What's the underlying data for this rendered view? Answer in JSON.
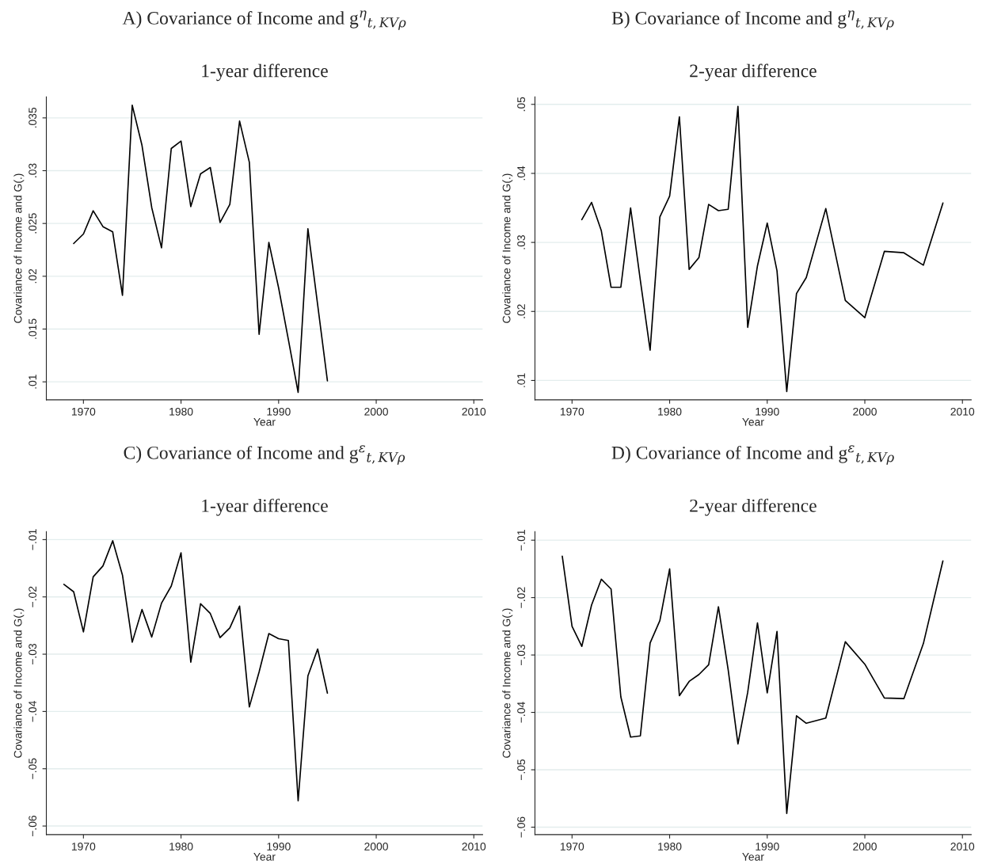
{
  "chart_data": [
    {
      "type": "line",
      "title": "A) Covariance of Income and g$^{η}$$_{t,KVρ}$",
      "subtitle": "1-year difference",
      "xlabel": "Year",
      "ylabel": "Covariance of Income and G(.)",
      "color": "#000000",
      "grid": "y",
      "x": [
        1969,
        1970,
        1971,
        1972,
        1973,
        1974,
        1975,
        1976,
        1977,
        1978,
        1979,
        1980,
        1981,
        1982,
        1983,
        1984,
        1985,
        1986,
        1987,
        1988,
        1989,
        1990,
        1991,
        1992,
        1993,
        1994,
        1995
      ],
      "values": [
        0.0231,
        0.024,
        0.0262,
        0.0247,
        0.0242,
        0.0182,
        0.0362,
        0.0324,
        0.0265,
        0.0227,
        0.0321,
        0.0328,
        0.0266,
        0.0297,
        0.0303,
        0.0251,
        0.0268,
        0.0347,
        0.0308,
        0.0145,
        0.0232,
        0.0189,
        0.014,
        0.009,
        0.0245,
        0.0173,
        0.0101
      ],
      "xlim": [
        1966.2,
        2010.9
      ],
      "xticks": [
        1970,
        1980,
        1990,
        2000,
        2010
      ],
      "ylim": [
        0.0083,
        0.037
      ],
      "yticks": [
        {
          "value": 0.01,
          "label": ".01"
        },
        {
          "value": 0.015,
          "label": ".015"
        },
        {
          "value": 0.02,
          "label": ".02"
        },
        {
          "value": 0.025,
          "label": ".025"
        },
        {
          "value": 0.03,
          "label": ".03"
        },
        {
          "value": 0.035,
          "label": ".035"
        }
      ]
    },
    {
      "type": "line",
      "title": "B) Covariance of Income and g$^{η}$$_{t,KVρ}$",
      "subtitle": "2-year difference",
      "xlabel": "Year",
      "ylabel": "Covariance of Income and G(.)",
      "color": "#000000",
      "grid": "y",
      "x": [
        1971,
        1972,
        1973,
        1974,
        1975,
        1976,
        1977,
        1978,
        1979,
        1980,
        1981,
        1982,
        1983,
        1984,
        1985,
        1986,
        1987,
        1988,
        1989,
        1990,
        1991,
        1992,
        1993,
        1994,
        1996,
        1998,
        2000,
        2002,
        2004,
        2006,
        2008
      ],
      "values": [
        0.0333,
        0.0358,
        0.0317,
        0.0235,
        0.0235,
        0.035,
        0.0245,
        0.0144,
        0.0337,
        0.0367,
        0.0482,
        0.0261,
        0.0278,
        0.0355,
        0.0346,
        0.0348,
        0.0497,
        0.0177,
        0.0266,
        0.0328,
        0.0259,
        0.0084,
        0.0226,
        0.0249,
        0.0349,
        0.0216,
        0.0191,
        0.0287,
        0.0285,
        0.0267,
        0.0357
      ],
      "xlim": [
        1966.2,
        2010.9
      ],
      "xticks": [
        1970,
        1980,
        1990,
        2000,
        2010
      ],
      "ylim": [
        0.0072,
        0.0511
      ],
      "yticks": [
        {
          "value": 0.01,
          "label": ".01"
        },
        {
          "value": 0.02,
          "label": ".02"
        },
        {
          "value": 0.03,
          "label": ".03"
        },
        {
          "value": 0.04,
          "label": ".04"
        },
        {
          "value": 0.05,
          "label": ".05"
        }
      ]
    },
    {
      "type": "line",
      "title": "C) Covariance of Income and g$^{ε}$$_{t,KVρ}$",
      "subtitle": "1-year difference",
      "xlabel": "Year",
      "ylabel": "Covariance of Income and G(.)",
      "color": "#000000",
      "grid": "y",
      "x": [
        1968,
        1969,
        1970,
        1971,
        1972,
        1973,
        1974,
        1975,
        1976,
        1977,
        1978,
        1979,
        1980,
        1981,
        1982,
        1983,
        1984,
        1985,
        1986,
        1987,
        1988,
        1989,
        1990,
        1991,
        1992,
        1993,
        1994,
        1995
      ],
      "values": [
        -0.0178,
        -0.0191,
        -0.0261,
        -0.0165,
        -0.0146,
        -0.0102,
        -0.0162,
        -0.0279,
        -0.0222,
        -0.027,
        -0.0211,
        -0.0181,
        -0.0123,
        -0.0314,
        -0.0212,
        -0.0229,
        -0.0271,
        -0.0254,
        -0.0216,
        -0.0392,
        -0.0331,
        -0.0264,
        -0.0273,
        -0.0276,
        -0.0556,
        -0.0338,
        -0.0291,
        -0.0368
      ],
      "xlim": [
        1966.2,
        2010.9
      ],
      "xticks": [
        1970,
        1980,
        1990,
        2000,
        2010
      ],
      "ylim": [
        -0.0615,
        -0.0086
      ],
      "yticks": [
        {
          "value": -0.06,
          "label": "−.06"
        },
        {
          "value": -0.05,
          "label": "−.05"
        },
        {
          "value": -0.04,
          "label": "−.04"
        },
        {
          "value": -0.03,
          "label": "−.03"
        },
        {
          "value": -0.02,
          "label": "−.02"
        },
        {
          "value": -0.01,
          "label": "−.01"
        }
      ]
    },
    {
      "type": "line",
      "title": "D) Covariance of Income and g$^{ε}$$_{t,KVρ}$",
      "subtitle": "2-year difference",
      "xlabel": "Year",
      "ylabel": "Covariance of Income and G(.)",
      "color": "#000000",
      "grid": "y",
      "x": [
        1969,
        1970,
        1971,
        1972,
        1973,
        1974,
        1975,
        1976,
        1977,
        1978,
        1979,
        1980,
        1981,
        1982,
        1983,
        1984,
        1985,
        1986,
        1987,
        1988,
        1989,
        1990,
        1991,
        1992,
        1993,
        1994,
        1996,
        1998,
        2000,
        2002,
        2004,
        2006,
        2008
      ],
      "values": [
        -0.0128,
        -0.025,
        -0.0285,
        -0.0213,
        -0.0168,
        -0.0185,
        -0.0373,
        -0.0443,
        -0.0441,
        -0.0279,
        -0.024,
        -0.015,
        -0.0371,
        -0.0346,
        -0.0334,
        -0.0317,
        -0.0216,
        -0.0326,
        -0.0455,
        -0.0365,
        -0.0244,
        -0.0366,
        -0.0259,
        -0.0576,
        -0.0406,
        -0.0419,
        -0.041,
        -0.0277,
        -0.0316,
        -0.0375,
        -0.0376,
        -0.028,
        -0.0136
      ],
      "xlim": [
        1966.2,
        2010.9
      ],
      "xticks": [
        1970,
        1980,
        1990,
        2000,
        2010
      ],
      "ylim": [
        -0.0613,
        -0.0085
      ],
      "yticks": [
        {
          "value": -0.06,
          "label": "−.06"
        },
        {
          "value": -0.05,
          "label": "−.05"
        },
        {
          "value": -0.04,
          "label": "−.04"
        },
        {
          "value": -0.03,
          "label": "−.03"
        },
        {
          "value": -0.02,
          "label": "−.02"
        },
        {
          "value": -0.01,
          "label": "−.01"
        }
      ]
    }
  ]
}
